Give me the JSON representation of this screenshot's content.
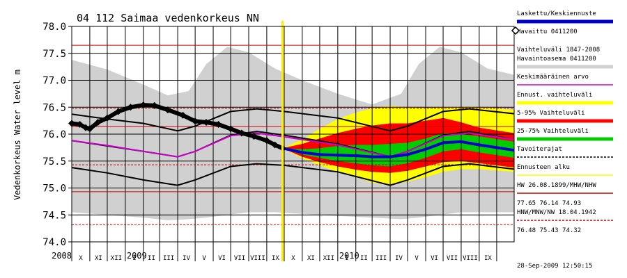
{
  "chart_data": {
    "type": "line",
    "title": "04 112 Saimaa vedenkorkeus NN",
    "ylabel": "Vedenkorkeus Water level m",
    "ylim": [
      74.0,
      78.0
    ],
    "yticks": [
      "78.0",
      "77.5",
      "77.0",
      "76.5",
      "76.0",
      "75.5",
      "75.0",
      "74.5",
      "74.0"
    ],
    "x_start_date": "2008-10-01",
    "x_end_date": "2010-10-31",
    "forecast_start_date": "2009-09-28",
    "month_labels": [
      "X",
      "XI",
      "XII",
      "I",
      "II",
      "III",
      "IV",
      "V",
      "VI",
      "VII",
      "VIII",
      "IX",
      "X",
      "XI",
      "XII",
      "I",
      "II",
      "III",
      "IV",
      "V",
      "VI",
      "VII",
      "VIII",
      "IX"
    ],
    "year_labels": [
      {
        "label": "2008",
        "date": "2008-09-06"
      },
      {
        "label": "2009",
        "date": "2009-01-01"
      },
      {
        "label": "2010",
        "date": "2010-01-01"
      }
    ],
    "timestamp": "28-Sep-2009 12:50:15",
    "reference_levels": {
      "HW": 77.65,
      "MHW": 76.14,
      "NHW": 74.93,
      "HNW": 76.48,
      "MNW": 75.43,
      "NW": 74.32
    },
    "legend": [
      {
        "label": "Laskettu/Keskiennuste",
        "color": "#0000cc",
        "style": "thick"
      },
      {
        "label": "Havaittu 0411200",
        "color": "#000000",
        "style": "diamond"
      },
      {
        "label": "Vaihteluväli 1847-2008",
        "color": "",
        "style": "none"
      },
      {
        "label": "Havaintoasema 0411200",
        "color": "#d0d0d0",
        "style": "thick"
      },
      {
        "label": "Keskimääräinen arvo",
        "color": "#cc00cc",
        "style": "line"
      },
      {
        "label": "Ennust. vaihteluväli",
        "color": "#ffff00",
        "style": "thick"
      },
      {
        "label": "5-95% Vaihteluväli",
        "color": "#ff0000",
        "style": "thick"
      },
      {
        "label": "25-75% Vaihteluväli",
        "color": "#00cc00",
        "style": "thick"
      },
      {
        "label": "Tavoiterajat",
        "color": "#000000",
        "style": "dashed"
      },
      {
        "label": "Ennusteen alku",
        "color": "#ffff00",
        "style": "line"
      },
      {
        "label": "HW 26.08.1899/MHW/NHW",
        "color": "#cc0000",
        "style": "line"
      },
      {
        "label": "77.65 76.14 74.93",
        "color": "",
        "style": "none"
      },
      {
        "label": "HNW/MNW/NW 18.04.1942",
        "color": "#cc0000",
        "style": "dashed"
      },
      {
        "label": "76.48 75.43 74.32",
        "color": "",
        "style": "none"
      }
    ],
    "historical_range": {
      "x": [
        "2008-10-01",
        "2008-12-01",
        "2009-02-01",
        "2009-03-15",
        "2009-04-20",
        "2009-05-20",
        "2009-06-25",
        "2009-08-01",
        "2009-09-15",
        "2009-11-01",
        "2010-01-01",
        "2010-03-01",
        "2010-04-20",
        "2010-05-20",
        "2010-06-25",
        "2010-08-01",
        "2010-09-15",
        "2010-10-31"
      ],
      "upper": [
        77.38,
        77.2,
        76.92,
        76.72,
        76.8,
        77.3,
        77.62,
        77.52,
        77.22,
        77.0,
        76.75,
        76.55,
        76.75,
        77.3,
        77.62,
        77.52,
        77.22,
        77.1
      ],
      "lower": [
        74.55,
        74.5,
        74.45,
        74.4,
        74.42,
        74.45,
        74.5,
        74.55,
        74.55,
        74.52,
        74.48,
        74.45,
        74.42,
        74.45,
        74.5,
        74.55,
        74.55,
        74.55
      ]
    },
    "target_limits": {
      "x": [
        "2008-10-01",
        "2008-12-01",
        "2009-02-01",
        "2009-04-01",
        "2009-05-01",
        "2009-07-01",
        "2009-08-15",
        "2009-10-01",
        "2010-01-01",
        "2010-04-01",
        "2010-05-01",
        "2010-07-01",
        "2010-08-15",
        "2010-10-31"
      ],
      "upper": [
        76.37,
        76.28,
        76.2,
        76.06,
        76.15,
        76.42,
        76.47,
        76.42,
        76.3,
        76.06,
        76.15,
        76.42,
        76.47,
        76.38
      ],
      "middle": [
        75.88,
        75.78,
        75.68,
        75.58,
        75.68,
        75.98,
        76.05,
        75.98,
        75.82,
        75.58,
        75.68,
        75.98,
        76.05,
        75.9
      ],
      "lower": [
        75.38,
        75.28,
        75.15,
        75.05,
        75.15,
        75.4,
        75.45,
        75.42,
        75.3,
        75.05,
        75.15,
        75.4,
        75.45,
        75.35
      ]
    },
    "observed": {
      "x": [
        "2008-10-01",
        "2008-10-15",
        "2008-10-25",
        "2008-11-01",
        "2008-11-15",
        "2008-12-01",
        "2008-12-20",
        "2009-01-10",
        "2009-02-01",
        "2009-02-20",
        "2009-03-15",
        "2009-04-10",
        "2009-05-01",
        "2009-05-20",
        "2009-06-10",
        "2009-07-01",
        "2009-07-20",
        "2009-08-10",
        "2009-09-01",
        "2009-09-15",
        "2009-09-28"
      ],
      "y": [
        76.2,
        76.18,
        76.12,
        76.1,
        76.22,
        76.3,
        76.42,
        76.5,
        76.54,
        76.53,
        76.45,
        76.35,
        76.24,
        76.22,
        76.18,
        76.1,
        76.02,
        75.96,
        75.88,
        75.8,
        75.74
      ]
    },
    "average": {
      "x": [
        "2008-10-01",
        "2008-12-01",
        "2009-02-01",
        "2009-04-01",
        "2009-05-01",
        "2009-07-01",
        "2009-08-15",
        "2009-10-01",
        "2010-01-01",
        "2010-04-01",
        "2010-05-01",
        "2010-07-01",
        "2010-08-15",
        "2010-10-31"
      ],
      "y": [
        75.88,
        75.79,
        75.68,
        75.58,
        75.68,
        75.97,
        76.02,
        75.95,
        75.8,
        75.58,
        75.68,
        75.97,
        76.02,
        75.9
      ]
    },
    "forecast": {
      "x": [
        "2009-09-28",
        "2009-11-01",
        "2009-12-01",
        "2010-01-01",
        "2010-02-01",
        "2010-03-01",
        "2010-04-01",
        "2010-05-01",
        "2010-06-01",
        "2010-07-01",
        "2010-08-01",
        "2010-09-01",
        "2010-10-31"
      ],
      "median": [
        75.74,
        75.66,
        75.62,
        75.61,
        75.6,
        75.58,
        75.58,
        75.62,
        75.72,
        75.84,
        75.86,
        75.8,
        75.7
      ],
      "p25": [
        75.74,
        75.62,
        75.56,
        75.5,
        75.46,
        75.42,
        75.4,
        75.46,
        75.56,
        75.68,
        75.72,
        75.66,
        75.56
      ],
      "p75": [
        75.74,
        75.72,
        75.74,
        75.78,
        75.8,
        75.8,
        75.82,
        75.84,
        75.92,
        76.02,
        76.0,
        75.96,
        75.86
      ],
      "p5": [
        75.74,
        75.58,
        75.48,
        75.4,
        75.34,
        75.3,
        75.28,
        75.32,
        75.4,
        75.48,
        75.5,
        75.46,
        75.38
      ],
      "p95": [
        75.74,
        75.82,
        75.92,
        76.02,
        76.1,
        76.16,
        76.2,
        76.2,
        76.25,
        76.3,
        76.22,
        76.12,
        76.02
      ],
      "min": [
        75.74,
        75.55,
        75.42,
        75.3,
        75.2,
        75.1,
        75.05,
        75.12,
        75.2,
        75.3,
        75.35,
        75.35,
        75.3
      ],
      "max": [
        75.74,
        75.9,
        76.1,
        76.28,
        76.4,
        76.48,
        76.52,
        76.5,
        76.48,
        76.5,
        76.5,
        76.5,
        76.45
      ]
    }
  }
}
